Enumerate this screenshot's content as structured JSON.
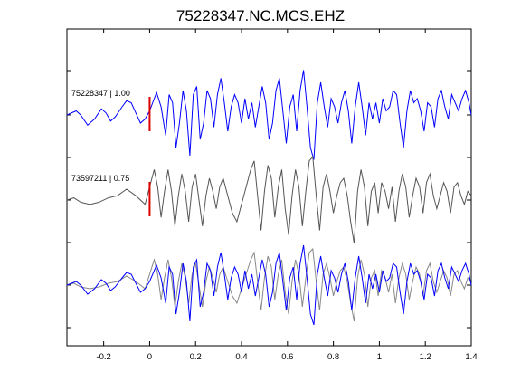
{
  "chart_data": {
    "type": "line",
    "title": "75228347.NC.MCS.EHZ",
    "xlabel": "",
    "ylabel": "",
    "xlim": [
      -0.36,
      1.4
    ],
    "x_ticks": [
      -0.2,
      0,
      0.2,
      0.4,
      0.6,
      0.8,
      1,
      1.2,
      1.4
    ],
    "x_tick_labels": [
      "-0.2",
      "0",
      "0.2",
      "0.4",
      "0.6",
      "0.8",
      "1",
      "1.2",
      "1.4"
    ],
    "grid": false,
    "marker_x": 0,
    "colors": {
      "blue": "#0000ff",
      "gray": "#555555",
      "light_gray": "#888888",
      "marker": "#dd0000"
    },
    "traces": [
      {
        "id": "75228347",
        "label": "75228347 | 1.00",
        "color": "#0000ff",
        "x": [
          -0.36,
          -0.32,
          -0.3,
          -0.27,
          -0.24,
          -0.21,
          -0.19,
          -0.17,
          -0.15,
          -0.12,
          -0.1,
          -0.08,
          -0.06,
          -0.04,
          -0.02,
          0,
          0.02,
          0.03,
          0.05,
          0.07,
          0.085,
          0.1,
          0.115,
          0.13,
          0.145,
          0.16,
          0.175,
          0.19,
          0.205,
          0.22,
          0.235,
          0.25,
          0.265,
          0.28,
          0.295,
          0.31,
          0.325,
          0.34,
          0.355,
          0.37,
          0.385,
          0.4,
          0.415,
          0.43,
          0.445,
          0.46,
          0.475,
          0.49,
          0.505,
          0.52,
          0.535,
          0.55,
          0.565,
          0.58,
          0.595,
          0.61,
          0.625,
          0.64,
          0.655,
          0.67,
          0.685,
          0.7,
          0.715,
          0.73,
          0.745,
          0.76,
          0.775,
          0.79,
          0.805,
          0.82,
          0.835,
          0.85,
          0.865,
          0.88,
          0.895,
          0.91,
          0.925,
          0.94,
          0.955,
          0.97,
          0.985,
          1,
          1.015,
          1.03,
          1.045,
          1.06,
          1.075,
          1.09,
          1.105,
          1.12,
          1.135,
          1.15,
          1.165,
          1.18,
          1.195,
          1.21,
          1.225,
          1.24,
          1.255,
          1.27,
          1.285,
          1.3,
          1.315,
          1.33,
          1.345,
          1.36,
          1.375,
          1.39,
          1.4
        ],
        "y": [
          0,
          0.1,
          0,
          -0.25,
          -0.1,
          0.15,
          0.05,
          -0.15,
          -0.05,
          0.2,
          0.35,
          0.3,
          0.05,
          -0.2,
          -0.1,
          0.1,
          0.4,
          0.55,
          0.2,
          -0.5,
          0.5,
          0.3,
          -0.8,
          -0.2,
          0.6,
          0.1,
          -1,
          0.5,
          0.7,
          -0.6,
          -0.2,
          0.6,
          0.4,
          -0.3,
          0.5,
          0.9,
          0.3,
          -0.4,
          0.2,
          0.5,
          0.3,
          -0.2,
          0.4,
          -0.1,
          0.3,
          -0.3,
          0.2,
          0.7,
          0.3,
          -0.6,
          -0.2,
          0.6,
          0.9,
          0.1,
          -0.7,
          0.2,
          0.5,
          -0.4,
          0.6,
          1.1,
          0.2,
          -0.8,
          -1.1,
          0.3,
          0.8,
          0.2,
          -0.3,
          0.4,
          0.2,
          -0.2,
          0.3,
          0.6,
          0.1,
          -0.7,
          0.2,
          0.8,
          0.2,
          -0.5,
          0.3,
          -0.1,
          0.3,
          -0.2,
          0.4,
          0.1,
          0.2,
          0.6,
          0.5,
          -0.2,
          -0.8,
          0.1,
          0.6,
          0.3,
          0.4,
          0.1,
          -0.4,
          0.3,
          0.2,
          -0.3,
          0.4,
          0.6,
          0.2,
          -0.1,
          0.5,
          0.3,
          0.1,
          0.4,
          0.6,
          0.3,
          0.0
        ]
      },
      {
        "id": "73597211",
        "label": "73597211 | 0.75",
        "color": "#555555",
        "x": [
          -0.36,
          -0.33,
          -0.3,
          -0.26,
          -0.22,
          -0.18,
          -0.14,
          -0.1,
          -0.06,
          -0.02,
          0,
          0.02,
          0.035,
          0.05,
          0.065,
          0.08,
          0.095,
          0.11,
          0.125,
          0.14,
          0.155,
          0.17,
          0.185,
          0.2,
          0.215,
          0.23,
          0.245,
          0.26,
          0.275,
          0.29,
          0.305,
          0.32,
          0.34,
          0.36,
          0.38,
          0.4,
          0.42,
          0.44,
          0.455,
          0.47,
          0.485,
          0.5,
          0.515,
          0.53,
          0.545,
          0.56,
          0.575,
          0.59,
          0.605,
          0.62,
          0.635,
          0.65,
          0.665,
          0.68,
          0.695,
          0.71,
          0.725,
          0.74,
          0.755,
          0.77,
          0.785,
          0.8,
          0.815,
          0.83,
          0.845,
          0.86,
          0.875,
          0.89,
          0.905,
          0.92,
          0.935,
          0.95,
          0.965,
          0.98,
          0.995,
          1.01,
          1.025,
          1.04,
          1.055,
          1.07,
          1.085,
          1.1,
          1.115,
          1.13,
          1.145,
          1.16,
          1.175,
          1.19,
          1.205,
          1.22,
          1.235,
          1.25,
          1.265,
          1.28,
          1.295,
          1.31,
          1.325,
          1.34,
          1.355,
          1.37,
          1.385,
          1.4
        ],
        "y": [
          0,
          0.05,
          -0.05,
          -0.1,
          -0.05,
          0.05,
          0.1,
          0.25,
          0.1,
          -0.1,
          0.3,
          0.7,
          0.3,
          -0.4,
          0.2,
          0.7,
          0.2,
          -0.6,
          0.1,
          0.6,
          0.2,
          -0.5,
          0.3,
          0.6,
          0,
          -0.6,
          0.1,
          0.5,
          0.2,
          -0.2,
          0.3,
          0.5,
          0.1,
          -0.3,
          -0.5,
          -0.1,
          0.3,
          0.7,
          0.9,
          0.1,
          -0.7,
          0.2,
          0.8,
          0.5,
          -0.4,
          0.3,
          0.7,
          -0.2,
          -0.8,
          0.1,
          0.7,
          0.3,
          -0.6,
          0.2,
          0.9,
          1.0,
          0.1,
          -0.7,
          0.3,
          0.6,
          0.2,
          -0.3,
          0.1,
          0.4,
          0.5,
          0.1,
          -0.5,
          -1.0,
          0.2,
          0.7,
          0.3,
          -0.6,
          0.2,
          0.4,
          -0.3,
          0.4,
          0.2,
          -0.2,
          0.3,
          -0.5,
          0.2,
          0.6,
          0.3,
          -0.4,
          0.1,
          0.5,
          0.3,
          -0.3,
          0.4,
          0.6,
          0.1,
          -0.2,
          0.1,
          0.4,
          0.2,
          -0.3,
          0.3,
          0.4,
          0.1,
          -0.1,
          0.2,
          0.1
        ]
      }
    ]
  }
}
